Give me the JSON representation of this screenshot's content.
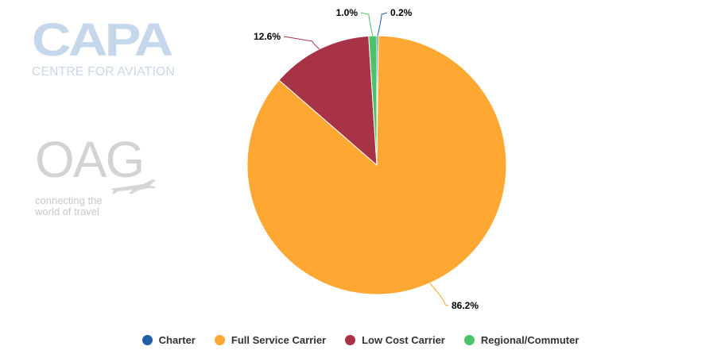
{
  "watermarks": {
    "capa_main": "CAPA",
    "capa_sub": "CENTRE FOR AVIATION",
    "oag_main": "OAG",
    "oag_tag_line1": "connecting the",
    "oag_tag_line2": "world of travel"
  },
  "chart_data": {
    "type": "pie",
    "title": "",
    "legend_position": "bottom",
    "slices": [
      {
        "name": "Charter",
        "value": 0.2,
        "label": "0.2%",
        "color": "#1f5fa8"
      },
      {
        "name": "Full Service Carrier",
        "value": 86.2,
        "label": "86.2%",
        "color": "#ffa733"
      },
      {
        "name": "Low Cost Carrier",
        "value": 12.6,
        "label": "12.6%",
        "color": "#a83246"
      },
      {
        "name": "Regional/Commuter",
        "value": 1.0,
        "label": "1.0%",
        "color": "#4cc26b"
      }
    ]
  }
}
